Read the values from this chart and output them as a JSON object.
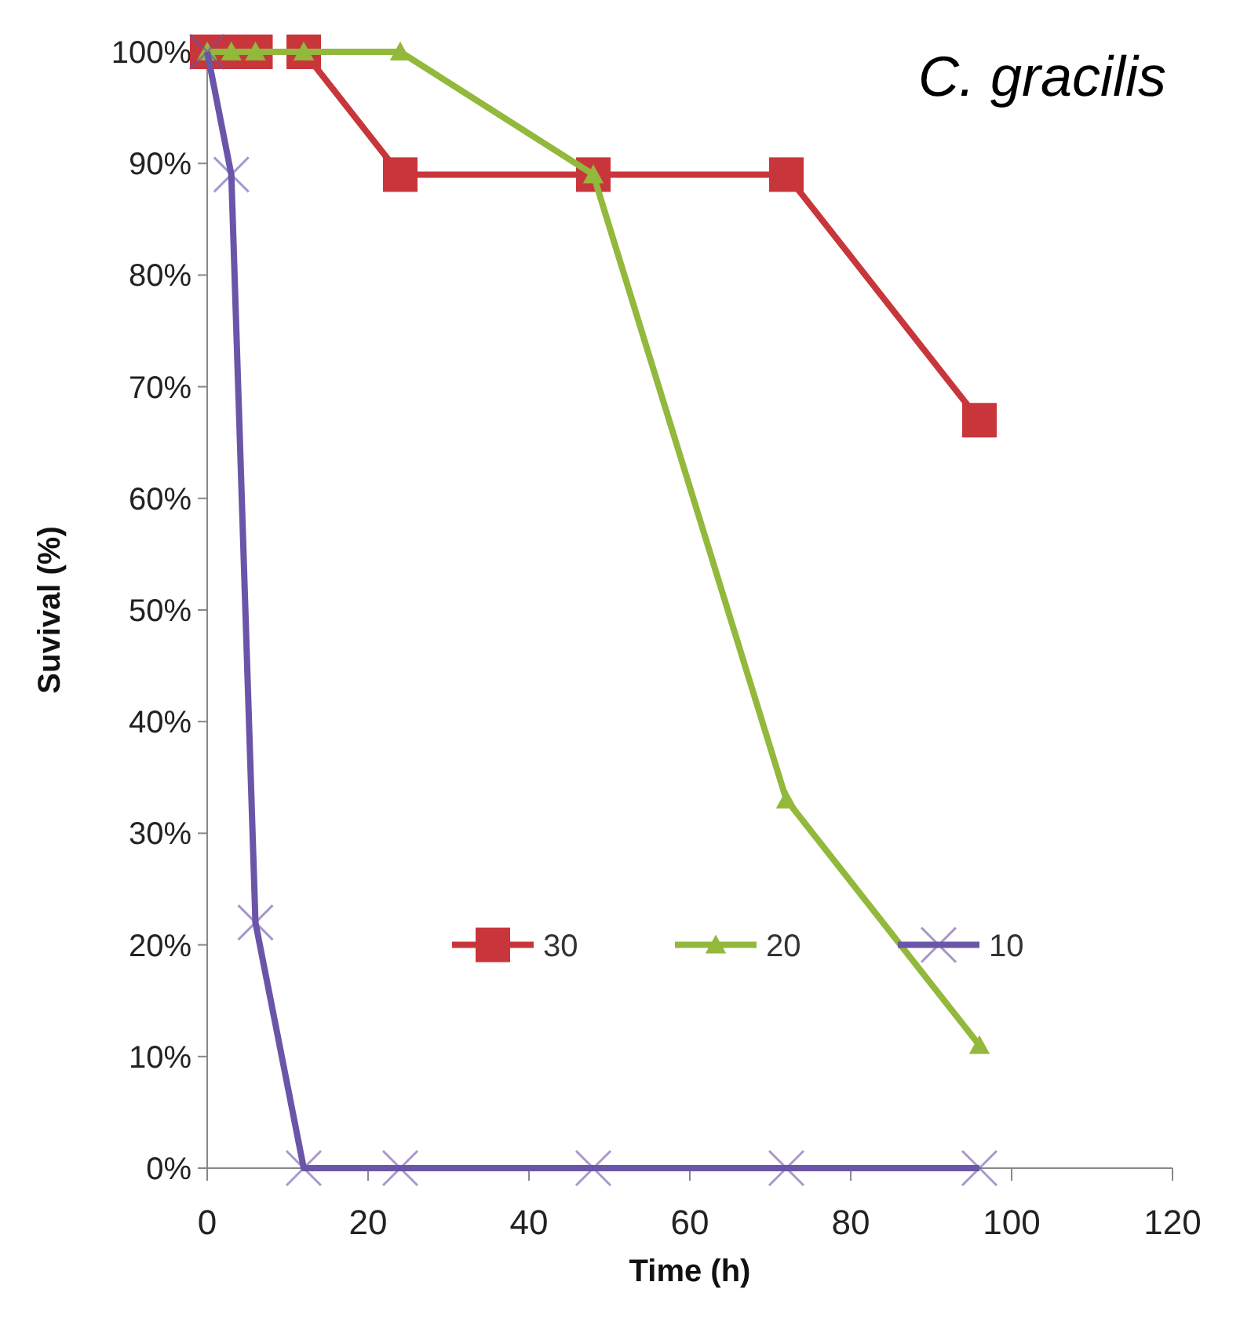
{
  "chart_data": {
    "type": "line",
    "title": "C. gracilis",
    "xlabel": "Time (h)",
    "ylabel": "Suvival (%)",
    "x": [
      0,
      3,
      6,
      12,
      24,
      48,
      72,
      96
    ],
    "series": [
      {
        "name": "30",
        "color": "#c8363b",
        "marker": "square",
        "values": [
          100,
          100,
          100,
          100,
          89,
          89,
          89,
          67
        ]
      },
      {
        "name": "20",
        "color": "#92b83c",
        "marker": "triangle",
        "values": [
          100,
          100,
          100,
          100,
          100,
          89,
          33,
          11
        ]
      },
      {
        "name": "10",
        "color": "#6a55a8",
        "marker": "cross",
        "values": [
          100,
          89,
          22,
          0,
          0,
          0,
          0,
          0
        ]
      }
    ],
    "xlim": [
      0,
      120
    ],
    "xticks": [
      0,
      20,
      40,
      60,
      80,
      100,
      120
    ],
    "ylim": [
      0,
      100
    ],
    "yticks": [
      {
        "value": 0,
        "label": "0%"
      },
      {
        "value": 10,
        "label": "10%"
      },
      {
        "value": 20,
        "label": "20%"
      },
      {
        "value": 30,
        "label": "30%"
      },
      {
        "value": 40,
        "label": "40%"
      },
      {
        "value": 50,
        "label": "50%"
      },
      {
        "value": 60,
        "label": "60%"
      },
      {
        "value": 70,
        "label": "70%"
      },
      {
        "value": 80,
        "label": "80%"
      },
      {
        "value": 90,
        "label": "90%"
      },
      {
        "value": 100,
        "label": "100%"
      }
    ],
    "grid": false,
    "legend": "bottom"
  }
}
